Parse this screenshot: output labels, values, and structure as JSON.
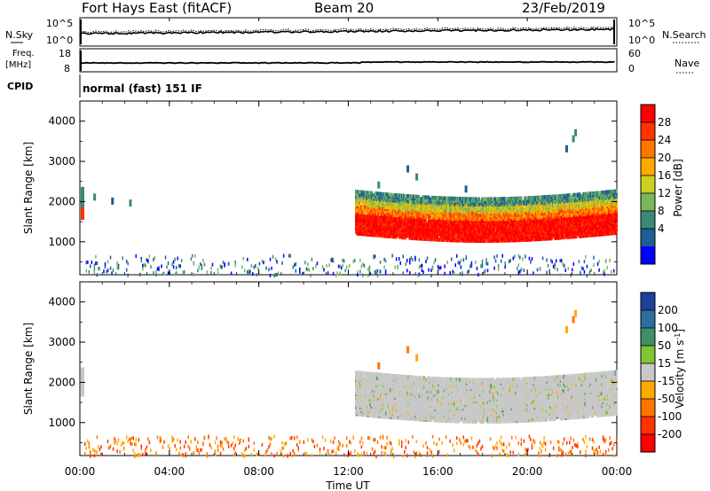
{
  "header": {
    "station": "Fort Hays East (fitACF)",
    "beam": "Beam 20",
    "date": "23/Feb/2019"
  },
  "noise_panel": {
    "left_label": "N.Sky",
    "right_label": "N.Search",
    "left_ticks": [
      "10^5",
      "10^0"
    ],
    "right_ticks": [
      "10^5",
      "10^0"
    ]
  },
  "freq_panel": {
    "left_label_line1": "Freq.",
    "left_label_line2": "[MHz]",
    "right_label": "Nave",
    "left_ticks": [
      "18",
      "8"
    ],
    "right_ticks": [
      "60",
      "0"
    ]
  },
  "cpid": {
    "label": "CPID",
    "mode": "normal (fast) 151 IF"
  },
  "chart_data": [
    {
      "type": "heatmap",
      "title": "",
      "xlabel": "Time UT",
      "ylabel": "Slant Range [km]",
      "xticks": [
        "00:00",
        "04:00",
        "08:00",
        "12:00",
        "16:00",
        "20:00",
        "00:00"
      ],
      "x_hours": [
        0,
        24
      ],
      "yticks": [
        1000,
        2000,
        3000,
        4000
      ],
      "ylim": [
        180,
        4500
      ],
      "colorbar": {
        "label": "Power [dB]",
        "ticks": [
          "28",
          "24",
          "20",
          "16",
          "12",
          "8",
          "4"
        ],
        "colors": [
          "#ff0000",
          "#ff3300",
          "#ff7700",
          "#ffaa00",
          "#ccd020",
          "#7ab65a",
          "#3a8a76",
          "#1d5e96",
          "#0000ff"
        ]
      },
      "features": [
        {
          "name": "main scatter band",
          "t_start": 12.3,
          "t_end": 24,
          "range_low_km": 1200,
          "range_high_km": 2300,
          "peak_db": 28
        },
        {
          "name": "early echoes",
          "t_start": 0,
          "t_end": 0.2,
          "range_low_km": 1700,
          "range_high_km": 2300,
          "peak_db": 28
        },
        {
          "name": "ground scatter near range",
          "t_start": 0,
          "t_end": 24,
          "range_low_km": 180,
          "range_high_km": 700,
          "peak_db": 12
        },
        {
          "name": "far patch",
          "t_start": 21.8,
          "t_end": 22.3,
          "range_low_km": 3600,
          "range_high_km": 3900,
          "peak_db": 10
        }
      ]
    },
    {
      "type": "heatmap",
      "title": "",
      "xlabel": "Time UT",
      "ylabel": "Slant Range [km]",
      "xticks": [
        "00:00",
        "04:00",
        "08:00",
        "12:00",
        "16:00",
        "20:00",
        "00:00"
      ],
      "x_hours": [
        0,
        24
      ],
      "yticks": [
        1000,
        2000,
        3000,
        4000
      ],
      "ylim": [
        180,
        4500
      ],
      "colorbar": {
        "label": "Velocity [m s^-1]",
        "ticks": [
          "200",
          "100",
          "50",
          "15",
          "-15",
          "-50",
          "-100",
          "-200"
        ],
        "colors": [
          "#1e3fa0",
          "#2e6e9e",
          "#3f8f68",
          "#7fc630",
          "#c8c8c8",
          "#ffaa00",
          "#ff7700",
          "#ff3300",
          "#ff0000"
        ]
      },
      "features": [
        {
          "name": "ground scatter (gray)",
          "t_start": 12.3,
          "t_end": 24,
          "range_low_km": 1200,
          "range_high_km": 2300,
          "velocity": 0
        },
        {
          "name": "near-range negative velocities",
          "t_start": 0,
          "t_end": 24,
          "range_low_km": 180,
          "range_high_km": 700,
          "velocity": -60
        }
      ]
    }
  ]
}
